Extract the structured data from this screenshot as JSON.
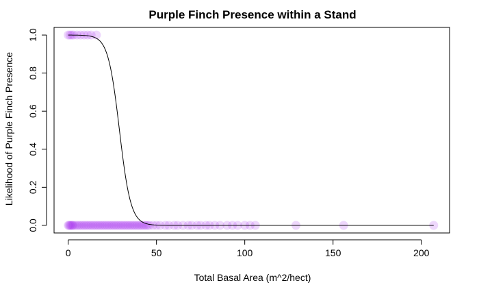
{
  "chart_data": {
    "type": "scatter",
    "title": "Purple Finch Presence within a Stand",
    "xlabel": "Total Basal Area (m^2/hect)",
    "ylabel": "Likelihood of Purple Finch Presence",
    "xlim": [
      -8,
      216
    ],
    "ylim": [
      -0.04,
      1.04
    ],
    "xticks": [
      0,
      50,
      100,
      150,
      200
    ],
    "yticks": [
      0.0,
      0.2,
      0.4,
      0.6,
      0.8,
      1.0
    ],
    "xtick_labels": [
      "0",
      "50",
      "100",
      "150",
      "200"
    ],
    "ytick_labels": [
      "0.0",
      "0.2",
      "0.4",
      "0.6",
      "0.8",
      "1.0"
    ],
    "grid": false,
    "point_color": "#a020f0",
    "curve_color": "#000000",
    "points_presence": [
      0,
      1,
      2,
      3,
      5,
      7,
      9,
      11,
      13,
      16
    ],
    "points_absence": [
      0,
      0.5,
      1,
      1.5,
      2,
      2.5,
      3,
      4,
      5,
      6,
      7,
      8,
      9,
      10,
      11,
      12,
      13,
      14,
      15,
      16,
      17,
      18,
      19,
      20,
      21,
      22,
      23,
      24,
      25,
      26,
      27,
      28,
      29,
      30,
      31,
      32,
      33,
      34,
      35,
      36,
      37,
      38,
      39,
      40,
      41,
      42,
      43,
      44,
      45,
      46,
      48,
      50,
      52,
      55,
      57,
      60,
      62,
      65,
      68,
      70,
      73,
      75,
      78,
      80,
      83,
      86,
      90,
      93,
      96,
      100,
      103,
      106,
      129,
      156,
      207
    ],
    "logistic_curve": {
      "intercept": 9.0,
      "slope": -0.31
    }
  }
}
